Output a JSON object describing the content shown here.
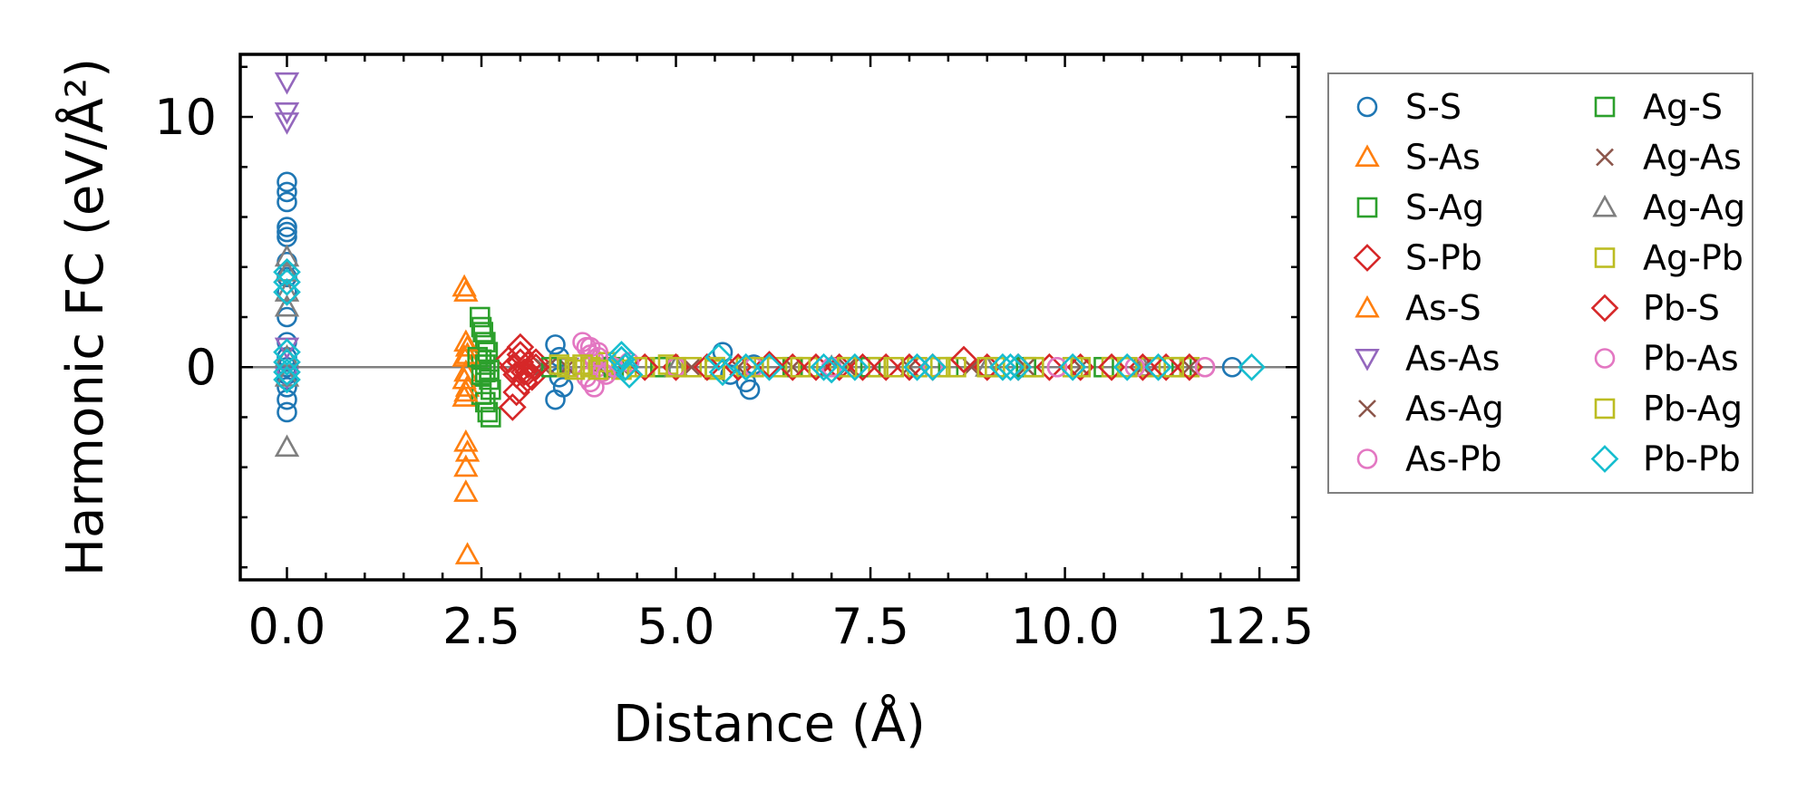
{
  "chart_data": {
    "type": "scatter",
    "title": "",
    "xlabel": "Distance (Å)",
    "ylabel": "Harmonic FC (eV/Å²)",
    "xlim": [
      -0.6,
      13.0
    ],
    "ylim": [
      -8.5,
      12.5
    ],
    "xticks": [
      0.0,
      2.5,
      5.0,
      7.5,
      10.0,
      12.5
    ],
    "xtick_labels": [
      "0.0",
      "2.5",
      "5.0",
      "7.5",
      "10.0",
      "12.5"
    ],
    "yticks": [
      0,
      10
    ],
    "ytick_labels": [
      "0",
      "10"
    ],
    "grid": false,
    "legend_position": "outside-right",
    "reference_line_y": 0,
    "series": [
      {
        "name": "S-S",
        "marker": "circle",
        "color": "#1f77b4",
        "x": [
          0,
          0,
          0,
          0,
          0,
          0,
          0,
          0,
          0,
          0,
          0,
          0,
          0,
          0,
          0,
          0,
          0,
          0,
          3.45,
          3.5,
          3.5,
          3.55,
          3.45,
          5.6,
          5.7,
          5.9,
          5.95,
          6.0,
          12.15
        ],
        "y": [
          7.4,
          7.0,
          6.6,
          5.6,
          5.4,
          5.2,
          4.2,
          3.6,
          3.0,
          2.0,
          1.0,
          0.4,
          0.0,
          -0.3,
          -0.8,
          -1.3,
          -1.8,
          -0.5,
          0.9,
          0.4,
          -0.4,
          -0.8,
          -1.3,
          0.6,
          -0.3,
          -0.6,
          -0.9,
          0.1,
          0.0
        ]
      },
      {
        "name": "S-As",
        "marker": "triangle-up",
        "color": "#ff7f0e",
        "x": [
          2.28,
          2.3,
          2.32,
          2.28,
          2.3,
          2.32,
          2.28,
          2.3,
          2.32,
          2.3,
          2.3,
          2.32
        ],
        "y": [
          3.2,
          3.0,
          0.8,
          0.4,
          -0.2,
          -0.8,
          -1.2,
          -3.0,
          -3.4,
          -4.0,
          -5.0,
          -7.5
        ]
      },
      {
        "name": "S-Ag",
        "marker": "square",
        "color": "#2ca02c",
        "x": [
          2.48,
          2.5,
          2.52,
          2.55,
          2.58,
          2.5,
          2.55,
          2.6,
          2.62,
          2.5,
          2.55,
          2.58,
          2.62
        ],
        "y": [
          2.0,
          1.6,
          1.4,
          1.0,
          0.6,
          0.3,
          -0.2,
          -0.5,
          -0.9,
          -1.1,
          -1.4,
          -1.8,
          -2.0
        ]
      },
      {
        "name": "S-Pb",
        "marker": "diamond",
        "color": "#d62728",
        "x": [
          2.85,
          2.9,
          2.95,
          3.0,
          3.05,
          3.1,
          3.15,
          3.2,
          2.9,
          2.95,
          3.0,
          3.05
        ],
        "y": [
          0.3,
          0.0,
          -0.3,
          0.5,
          -0.2,
          0.1,
          -0.4,
          0.2,
          -1.6,
          -1.0,
          0.8,
          -0.6
        ]
      },
      {
        "name": "As-S",
        "marker": "triangle-up",
        "color": "#ff7f0e",
        "x": [
          2.3,
          2.32,
          2.28,
          2.3
        ],
        "y": [
          1.0,
          0.5,
          -0.5,
          -1.0
        ]
      },
      {
        "name": "As-As",
        "marker": "triangle-down",
        "color": "#9467bd",
        "x": [
          0,
          0,
          0,
          0,
          0,
          3.6,
          4.1
        ],
        "y": [
          11.4,
          10.2,
          9.8,
          0.8,
          -0.4,
          0.0,
          0.0
        ]
      },
      {
        "name": "As-Ag",
        "marker": "x",
        "color": "#8c564b",
        "x": [
          3.3,
          3.6,
          4.0,
          5.2,
          6.5,
          8.0,
          9.5,
          11.0
        ],
        "y": [
          0.0,
          0.0,
          0.0,
          0.0,
          0.0,
          0.0,
          0.0,
          0.0
        ]
      },
      {
        "name": "As-Pb",
        "marker": "circle",
        "color": "#e377c2",
        "x": [
          3.8,
          3.85,
          3.9,
          3.95,
          4.0,
          4.05,
          3.85,
          3.9,
          3.95,
          4.0,
          7.0,
          9.9,
          11.8
        ],
        "y": [
          1.0,
          0.8,
          0.5,
          0.3,
          0.0,
          -0.2,
          -0.4,
          -0.6,
          -0.8,
          0.6,
          0.0,
          0.0,
          0.0
        ]
      },
      {
        "name": "Ag-S",
        "marker": "square",
        "color": "#2ca02c",
        "x": [
          2.45,
          2.5,
          2.55,
          2.6,
          3.4,
          4.2,
          4.8,
          5.5,
          6.5,
          7.5,
          8.5,
          9.5,
          10.5,
          11.5
        ],
        "y": [
          0.4,
          -0.3,
          0.1,
          -0.1,
          0.0,
          0.0,
          0.0,
          0.0,
          0.0,
          0.0,
          0.0,
          0.0,
          0.0,
          0.0
        ]
      },
      {
        "name": "Ag-As",
        "marker": "x",
        "color": "#8c564b",
        "x": [
          3.35,
          4.3,
          5.8,
          7.2,
          8.8,
          10.2,
          11.6
        ],
        "y": [
          0.0,
          0.0,
          0.0,
          0.0,
          0.0,
          0.0,
          0.0
        ]
      },
      {
        "name": "Ag-Ag",
        "marker": "triangle-up",
        "color": "#7f7f7f",
        "x": [
          0,
          0,
          0,
          0,
          0,
          0,
          0,
          5.0,
          7.0,
          9.0,
          11.0
        ],
        "y": [
          4.4,
          3.8,
          3.0,
          2.4,
          0.4,
          -0.4,
          -3.2,
          0.0,
          0.0,
          0.0,
          0.0
        ]
      },
      {
        "name": "Ag-Pb",
        "marker": "square",
        "color": "#bcbd22",
        "x": [
          3.5,
          3.7,
          3.9,
          4.1,
          4.3,
          4.6,
          4.9,
          5.2,
          5.5,
          5.9,
          6.3,
          6.7,
          7.1,
          7.6,
          8.1,
          8.6,
          9.1,
          9.6,
          10.1,
          10.6,
          11.1,
          11.6
        ],
        "y": [
          0.1,
          -0.1,
          0.0,
          0.2,
          -0.1,
          0.0,
          0.1,
          0.0,
          -0.1,
          0.0,
          0.0,
          0.0,
          0.0,
          0.0,
          0.0,
          0.0,
          0.0,
          0.0,
          0.0,
          0.0,
          0.0,
          0.0
        ]
      },
      {
        "name": "Pb-S",
        "marker": "diamond",
        "color": "#d62728",
        "x": [
          3.0,
          3.1,
          3.2,
          4.6,
          5.0,
          5.4,
          5.8,
          6.2,
          6.5,
          6.8,
          7.1,
          7.4,
          7.7,
          8.0,
          8.3,
          8.7,
          9.0,
          9.4,
          9.8,
          10.2,
          10.6,
          11.0,
          11.3,
          11.6
        ],
        "y": [
          0.2,
          -0.2,
          0.0,
          0.0,
          0.0,
          0.0,
          0.0,
          0.1,
          0.0,
          0.0,
          0.0,
          0.0,
          0.0,
          0.0,
          0.0,
          0.3,
          0.0,
          0.0,
          0.0,
          0.0,
          0.0,
          0.0,
          0.0,
          0.0
        ]
      },
      {
        "name": "Pb-As",
        "marker": "circle",
        "color": "#e377c2",
        "x": [
          3.9,
          4.0,
          4.1,
          4.2,
          4.4,
          5.0,
          6.0,
          7.0,
          8.3,
          9.9,
          10.9,
          11.8
        ],
        "y": [
          0.8,
          0.4,
          -0.3,
          0.0,
          0.2,
          0.0,
          0.0,
          0.0,
          0.0,
          0.0,
          0.0,
          0.0
        ]
      },
      {
        "name": "Pb-Ag",
        "marker": "square",
        "color": "#bcbd22",
        "x": [
          3.6,
          3.8,
          4.0,
          4.5,
          5.0,
          5.5,
          6.0,
          6.6,
          7.2,
          7.8,
          8.4,
          9.0,
          9.6,
          10.2,
          10.8,
          11.4
        ],
        "y": [
          0.0,
          0.1,
          -0.1,
          0.0,
          0.0,
          0.0,
          0.0,
          0.0,
          0.0,
          0.0,
          0.0,
          0.0,
          0.0,
          0.0,
          0.0,
          0.0
        ]
      },
      {
        "name": "Pb-Pb",
        "marker": "diamond",
        "color": "#17becf",
        "x": [
          0,
          0,
          0,
          0,
          0,
          0,
          0,
          4.3,
          4.35,
          4.4,
          4.3,
          5.55,
          5.6,
          5.9,
          6.2,
          6.9,
          7.0,
          7.3,
          8.1,
          8.3,
          9.2,
          9.3,
          9.4,
          10.1,
          10.8,
          11.2,
          12.4
        ],
        "y": [
          3.8,
          3.4,
          3.0,
          0.6,
          0.2,
          -0.2,
          -0.5,
          0.3,
          0.0,
          -0.3,
          0.5,
          0.4,
          -0.2,
          0.0,
          0.0,
          0.0,
          -0.1,
          0.0,
          0.0,
          0.0,
          0.0,
          0.0,
          0.0,
          0.0,
          0.0,
          0.0,
          0.0
        ]
      }
    ]
  }
}
